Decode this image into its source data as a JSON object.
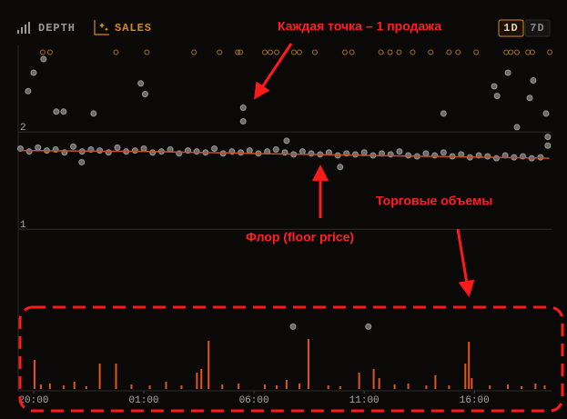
{
  "tabs": {
    "depth": "DEPTH",
    "sales": "SALES"
  },
  "range_buttons": [
    "1D",
    "7D"
  ],
  "annotations": {
    "sales_note": "Каждая точка – 1 продажа",
    "floor_note": "Флор (floor price)",
    "volume_note": "Торговые объемы"
  },
  "chart_data": [
    {
      "type": "scatter",
      "xlim": [
        -0.7,
        23.5
      ],
      "ylim": [
        -0.66,
        2.89
      ],
      "yticks": [
        1,
        2
      ],
      "grid": true,
      "series": [
        {
          "color": "#8a8a8a",
          "x": [
            -0.6,
            -0.2,
            0.2,
            0.6,
            1.0,
            1.4,
            1.8,
            2.2,
            2.6,
            3.0,
            3.4,
            3.8,
            4.2,
            4.6,
            5.0,
            5.4,
            5.8,
            6.2,
            6.6,
            7.0,
            7.4,
            7.8,
            8.2,
            8.6,
            9.0,
            9.4,
            9.8,
            10.2,
            10.6,
            11.0,
            11.4,
            11.8,
            12.2,
            12.6,
            13.0,
            13.4,
            13.8,
            14.2,
            14.6,
            15.0,
            15.4,
            15.8,
            16.2,
            16.6,
            17.0,
            17.4,
            17.8,
            18.2,
            18.6,
            19.0,
            19.4,
            19.8,
            20.2,
            20.6,
            21.0,
            21.4,
            21.8,
            22.2,
            22.6,
            23.0,
            -0.25,
            0,
            0.45,
            1.03,
            1.36,
            2.72,
            4.86,
            5.06,
            9.51,
            9.51,
            11.48,
            18.6,
            20.9,
            21.03,
            21.52,
            21.93,
            22.51,
            22.67,
            23.25,
            23.33,
            23.33,
            13.91,
            2.18,
            11.77,
            15.19
          ],
          "values": [
            1.83,
            1.8,
            1.84,
            1.81,
            1.82,
            1.79,
            1.85,
            1.8,
            1.82,
            1.81,
            1.79,
            1.84,
            1.8,
            1.81,
            1.83,
            1.79,
            1.8,
            1.82,
            1.78,
            1.81,
            1.8,
            1.79,
            1.83,
            1.78,
            1.8,
            1.79,
            1.81,
            1.78,
            1.8,
            1.82,
            1.79,
            1.77,
            1.8,
            1.78,
            1.77,
            1.79,
            1.76,
            1.78,
            1.77,
            1.79,
            1.76,
            1.78,
            1.77,
            1.8,
            1.76,
            1.75,
            1.78,
            1.76,
            1.79,
            1.75,
            1.77,
            1.74,
            1.76,
            1.75,
            1.73,
            1.76,
            1.74,
            1.75,
            1.73,
            1.74,
            2.42,
            2.61,
            2.75,
            2.21,
            2.21,
            2.19,
            2.5,
            2.39,
            2.25,
            2.11,
            1.91,
            2.19,
            2.47,
            2.37,
            2.61,
            2.05,
            2.35,
            2.53,
            2.19,
            1.86,
            1.95,
            1.64,
            1.69,
            0,
            0
          ]
        },
        {
          "color": "#d68a1c",
          "x": [
            0.41,
            0.74,
            3.74,
            5.14,
            7.28,
            8.44,
            9.26,
            9.38,
            10.49,
            10.74,
            11.03,
            11.81,
            12.06,
            12.76,
            14.12,
            14.44,
            15.76,
            16.17,
            16.58,
            17.2,
            18.02,
            18.85,
            19.26,
            20.08,
            21.44,
            21.65,
            21.93,
            22.43,
            22.63,
            23.42
          ],
          "values": [
            2.82,
            2.82,
            2.82,
            2.82,
            2.82,
            2.82,
            2.82,
            2.82,
            2.82,
            2.82,
            2.82,
            2.82,
            2.82,
            2.82,
            2.82,
            2.82,
            2.82,
            2.82,
            2.82,
            2.82,
            2.82,
            2.82,
            2.82,
            2.82,
            2.82,
            2.82,
            2.82,
            2.82,
            2.82,
            2.82
          ]
        }
      ]
    },
    {
      "type": "line",
      "color": "#c2522b",
      "xlim": [
        -0.7,
        23.5
      ],
      "ylim": [
        -0.66,
        2.89
      ],
      "x": [
        -0.7,
        5,
        10,
        15,
        23.4
      ],
      "values": [
        1.81,
        1.8,
        1.78,
        1.76,
        1.73
      ]
    },
    {
      "type": "bar",
      "color": "#e0561a",
      "xlim": [
        -0.7,
        23.5
      ],
      "ylim": [
        0,
        60
      ],
      "xticks": [
        {
          "value": 0,
          "label": "20:00"
        },
        {
          "value": 5,
          "label": "01:00"
        },
        {
          "value": 10,
          "label": "06:00"
        },
        {
          "value": 15,
          "label": "11:00"
        },
        {
          "value": 20,
          "label": "16:00"
        }
      ],
      "x": [
        0.04,
        0.33,
        0.74,
        1.36,
        1.85,
        2.39,
        3.0,
        3.74,
        4.44,
        5.27,
        6.01,
        6.71,
        7.41,
        7.61,
        7.94,
        8.56,
        9.3,
        10.49,
        11.03,
        11.48,
        12.06,
        12.47,
        13.37,
        13.91,
        14.77,
        15.43,
        15.68,
        16.38,
        17.0,
        17.82,
        18.23,
        18.85,
        19.59,
        19.75,
        19.88,
        20.7,
        21.52,
        22.14,
        22.77,
        23.19
      ],
      "values": [
        32,
        5,
        6,
        4,
        8,
        3,
        28,
        28,
        5,
        4,
        8,
        4,
        18,
        22,
        53,
        5,
        6,
        5,
        4,
        10,
        6,
        55,
        4,
        3,
        18,
        22,
        12,
        5,
        6,
        4,
        15,
        4,
        28,
        52,
        12,
        4,
        5,
        3,
        6,
        4
      ]
    }
  ]
}
